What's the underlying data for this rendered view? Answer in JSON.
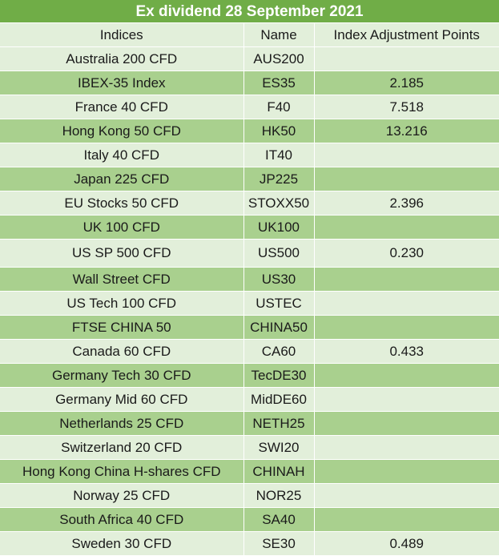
{
  "title": "Ex dividend 28 September 2021",
  "headers": [
    "Indices",
    "Name",
    "Index Adjustment Points"
  ],
  "rows": [
    [
      "Australia 200 CFD",
      "AUS200",
      ""
    ],
    [
      "IBEX-35 Index",
      "ES35",
      "2.185"
    ],
    [
      "France 40 CFD",
      "F40",
      "7.518"
    ],
    [
      "Hong Kong 50 CFD",
      "HK50",
      "13.216"
    ],
    [
      "Italy 40 CFD",
      "IT40",
      ""
    ],
    [
      "Japan 225 CFD",
      "JP225",
      ""
    ],
    [
      "EU Stocks 50 CFD",
      "STOXX50",
      "2.396"
    ],
    [
      "UK 100 CFD",
      "UK100",
      ""
    ],
    [
      "US SP 500 CFD",
      "US500",
      "0.230"
    ],
    [
      "Wall Street CFD",
      "US30",
      ""
    ],
    [
      "US Tech 100 CFD",
      "USTEC",
      ""
    ],
    [
      "FTSE CHINA 50",
      "CHINA50",
      ""
    ],
    [
      "Canada 60 CFD",
      "CA60",
      "0.433"
    ],
    [
      "Germany Tech 30 CFD",
      "TecDE30",
      ""
    ],
    [
      "Germany Mid 60 CFD",
      "MidDE60",
      ""
    ],
    [
      "Netherlands 25 CFD",
      "NETH25",
      ""
    ],
    [
      "Switzerland 20 CFD",
      "SWI20",
      ""
    ],
    [
      "Hong Kong China H-shares CFD",
      "CHINAH",
      ""
    ],
    [
      "Norway 25 CFD",
      "NOR25",
      ""
    ],
    [
      "South Africa 40 CFD",
      "SA40",
      ""
    ],
    [
      "Sweden 30 CFD",
      "SE30",
      "0.489"
    ]
  ],
  "colors": {
    "title_bg": "#70ad47",
    "row_light": "#e2efda",
    "row_dark": "#a9d08e"
  }
}
